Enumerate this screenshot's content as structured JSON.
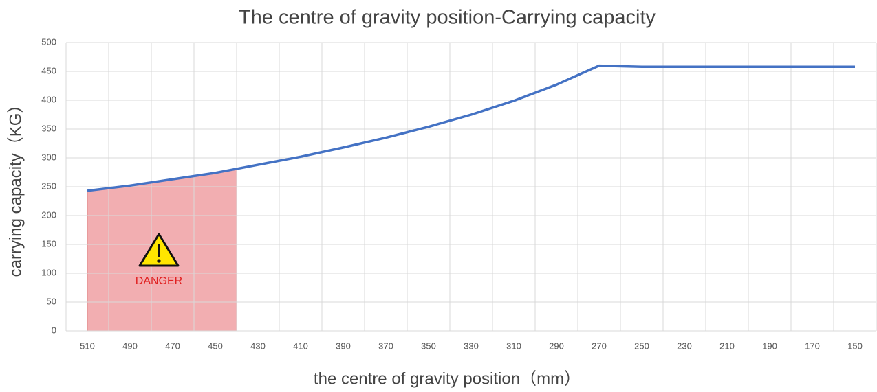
{
  "chart_data": {
    "type": "line",
    "title": "The centre of gravity position-Carrying capacity",
    "xlabel": "the centre of gravity position（mm）",
    "ylabel": "carrying capacity（KG）",
    "annotation": "DANGER",
    "categories": [
      "510",
      "490",
      "470",
      "450",
      "430",
      "410",
      "390",
      "370",
      "350",
      "330",
      "310",
      "290",
      "270",
      "250",
      "230",
      "210",
      "190",
      "170",
      "150"
    ],
    "series": [
      {
        "name": "carrying capacity",
        "color": "#4472c4",
        "values": [
          243,
          252,
          263,
          274,
          288,
          302,
          318,
          335,
          354,
          375,
          399,
          427,
          460,
          458,
          458,
          458,
          458,
          458,
          458
        ]
      }
    ],
    "ylim": [
      0,
      500
    ],
    "yticks": [
      0,
      50,
      100,
      150,
      200,
      250,
      300,
      350,
      400,
      450,
      500
    ],
    "grid": true
  }
}
